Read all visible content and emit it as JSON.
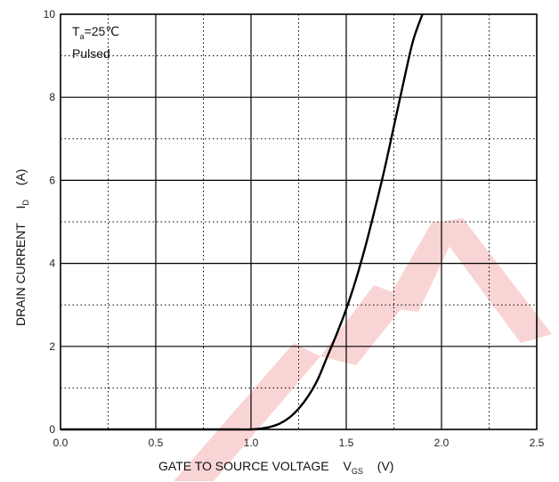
{
  "chart_data": {
    "type": "line",
    "x_ticks": [
      "0.0",
      "0.5",
      "1.0",
      "1.5",
      "2.0",
      "2.5"
    ],
    "y_ticks": [
      "0",
      "2",
      "4",
      "6",
      "8",
      "10"
    ],
    "xlim": [
      0,
      2.5
    ],
    "ylim": [
      0,
      10
    ],
    "grid": "solid major lines at labeled ticks, dotted minor lines midway",
    "xlabel": {
      "main": "GATE TO SOURCE VOLTAGE",
      "symbol": "V",
      "subscript": "GS",
      "unit": "(V)"
    },
    "ylabel": {
      "main": "DRAIN CURRENT",
      "symbol": "I",
      "subscript": "D",
      "unit": "(A)"
    },
    "annotations": {
      "temp_symbol": "T",
      "temp_subscript": "a",
      "temp_value": "=25℃",
      "mode": "Pulsed"
    },
    "series": [
      {
        "x": [
          0.0,
          0.5,
          0.9,
          1.0,
          1.05,
          1.1,
          1.15,
          1.2,
          1.25,
          1.3,
          1.35,
          1.4,
          1.45,
          1.5,
          1.55,
          1.6,
          1.65,
          1.7,
          1.75,
          1.8,
          1.85,
          1.9
        ],
        "y": [
          0.0,
          0.0,
          0.0,
          0.0,
          0.02,
          0.06,
          0.14,
          0.28,
          0.5,
          0.8,
          1.2,
          1.75,
          2.3,
          2.9,
          3.6,
          4.4,
          5.3,
          6.25,
          7.3,
          8.35,
          9.35,
          10.0
        ]
      }
    ]
  },
  "colors": {
    "curve": "#000000",
    "grid": "#000000",
    "watermark": "#f6c4c4"
  }
}
